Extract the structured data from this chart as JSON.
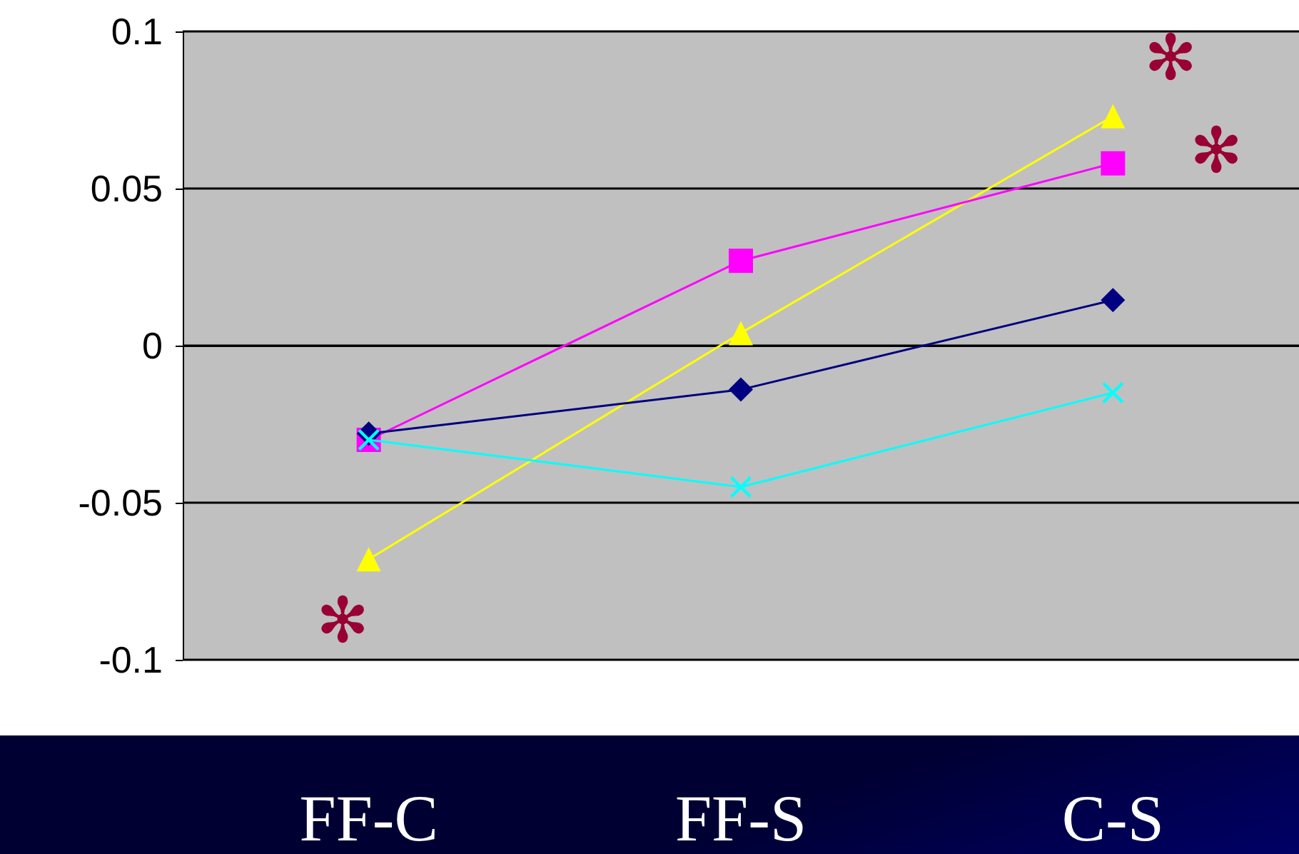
{
  "chart_data": {
    "type": "line",
    "categories": [
      "FF-C",
      "FF-S",
      "C-S"
    ],
    "series": [
      {
        "color": "#000080",
        "marker": "diamond",
        "values": [
          -0.028,
          -0.014,
          0.0145
        ]
      },
      {
        "color": "#ff00ff",
        "marker": "square",
        "values": [
          -0.03,
          0.027,
          0.058
        ]
      },
      {
        "color": "#ffff00",
        "marker": "triangle",
        "values": [
          -0.068,
          0.004,
          0.073
        ]
      },
      {
        "color": "#00ffff",
        "marker": "cross",
        "values": [
          -0.03,
          -0.045,
          -0.015
        ]
      }
    ],
    "ylim": [
      -0.1,
      0.1
    ],
    "yticks": [
      -0.1,
      -0.05,
      0,
      0.05,
      0.1
    ],
    "grid": "y",
    "line_style": "solid",
    "annotations": [
      "✻",
      "✻",
      "✻"
    ]
  }
}
